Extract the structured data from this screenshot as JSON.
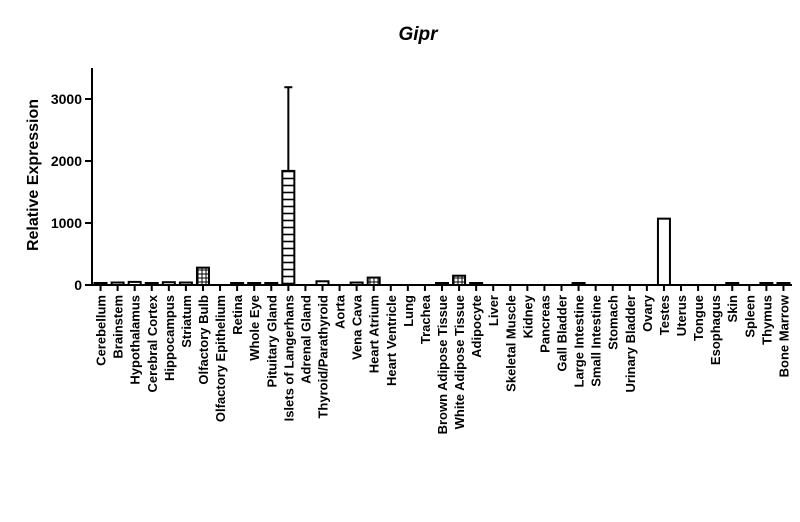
{
  "chart_data": {
    "type": "bar",
    "title": "Gipr",
    "ylabel": "Relative Expression",
    "xlabel": "",
    "ylim": [
      0,
      3500
    ],
    "yticks": [
      0,
      1000,
      2000,
      3000
    ],
    "grid": false,
    "categories": [
      "Cerebellum",
      "Brainstem",
      "Hypothalamus",
      "Cerebral Cortex",
      "Hippocampus",
      "Striatum",
      "Olfactory Bulb",
      "Olfactory Epithelium",
      "Retina",
      "Whole Eye",
      "Pituitary Gland",
      "Islets of Langerhans",
      "Adrenal Gland",
      "Thyroid/Parathyroid",
      "Aorta",
      "Vena Cava",
      "Heart Atrium",
      "Heart Ventricle",
      "Lung",
      "Trachea",
      "Brown Adipose Tissue",
      "White Adipose Tissue",
      "Adipocyte",
      "Liver",
      "Skeletal Muscle",
      "Kidney",
      "Pancreas",
      "Gall Bladder",
      "Large Intestine",
      "Small Intestine",
      "Stomach",
      "Urinary Bladder",
      "Ovary",
      "Testes",
      "Uterus",
      "Tongue",
      "Esophagus",
      "Skin",
      "Spleen",
      "Thymus",
      "Bone Marrow"
    ],
    "values": [
      20,
      40,
      50,
      30,
      45,
      40,
      280,
      0,
      20,
      10,
      20,
      1840,
      0,
      60,
      0,
      40,
      120,
      0,
      0,
      0,
      20,
      150,
      10,
      0,
      0,
      0,
      0,
      0,
      5,
      0,
      0,
      0,
      0,
      1070,
      0,
      0,
      0,
      5,
      0,
      5,
      5
    ],
    "errors": [
      0,
      0,
      0,
      0,
      0,
      0,
      0,
      0,
      0,
      0,
      0,
      1350,
      0,
      0,
      0,
      0,
      0,
      0,
      0,
      0,
      0,
      0,
      0,
      0,
      0,
      0,
      0,
      0,
      0,
      0,
      0,
      0,
      0,
      0,
      0,
      0,
      0,
      0,
      0,
      0,
      0
    ]
  }
}
